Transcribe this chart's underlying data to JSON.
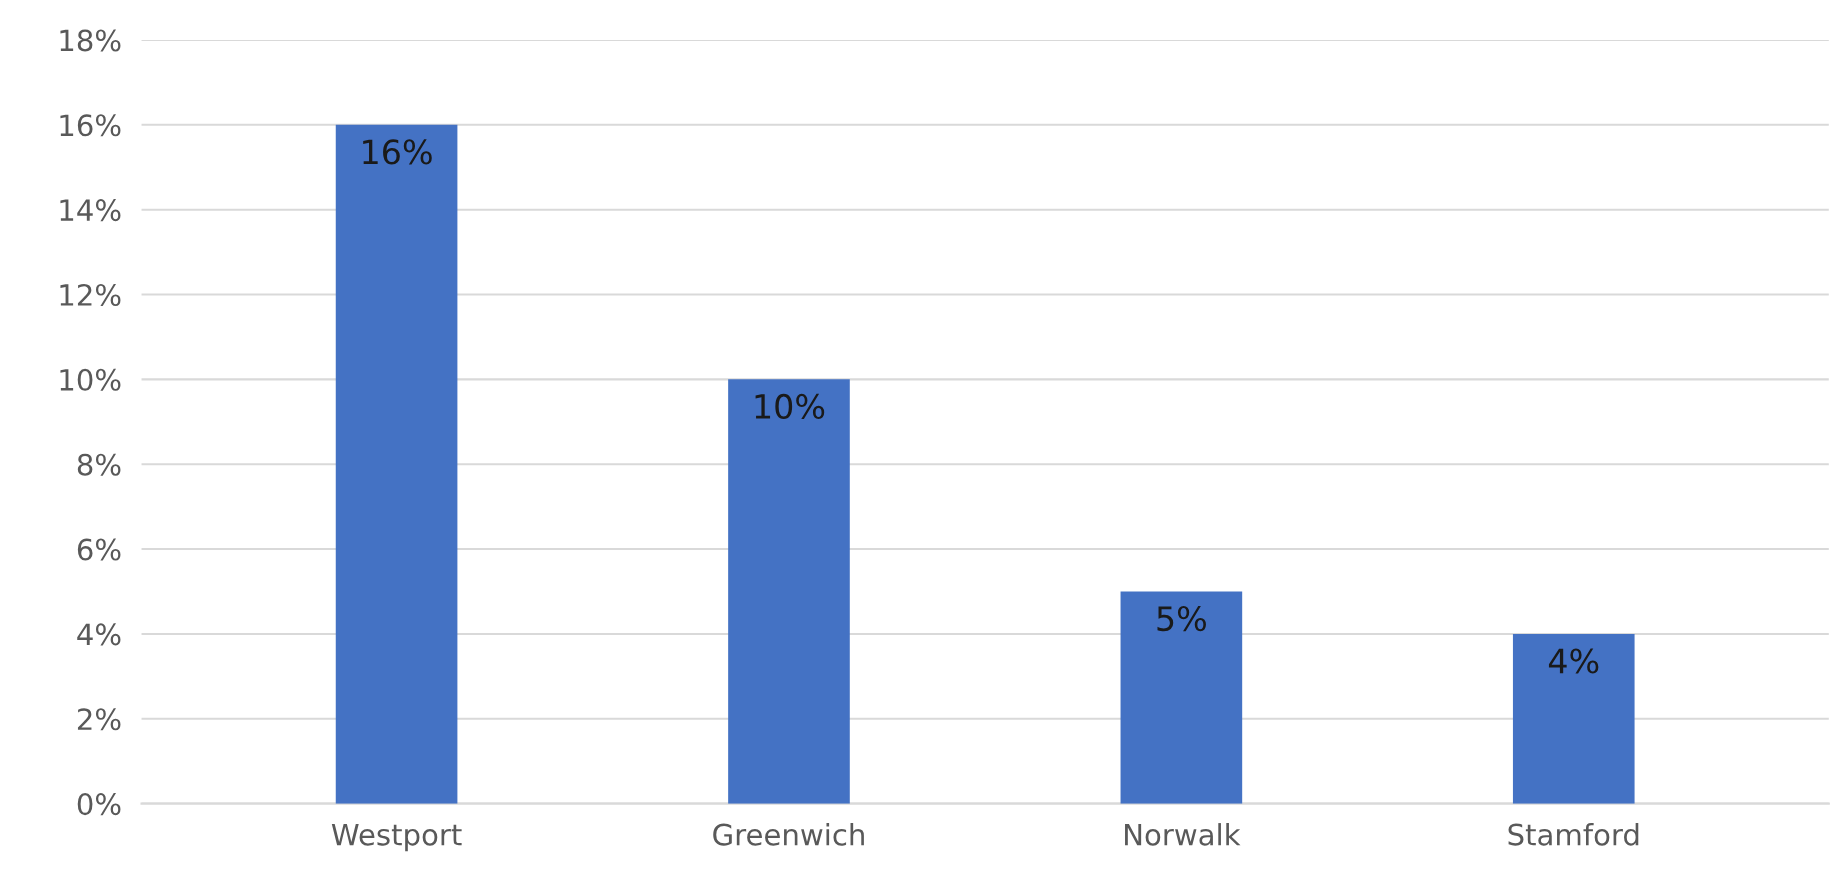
{
  "chart_data": {
    "type": "bar",
    "categories": [
      "Westport",
      "Greenwich",
      "Norwalk",
      "Stamford"
    ],
    "values": [
      16,
      10,
      5,
      4
    ],
    "value_labels": [
      "16%",
      "10%",
      "5%",
      "4%"
    ],
    "color": "#4472c4",
    "ylim": [
      0,
      18
    ],
    "yticks": [
      {
        "value": 0,
        "label": "0%"
      },
      {
        "value": 2,
        "label": "2%"
      },
      {
        "value": 4,
        "label": "4%"
      },
      {
        "value": 6,
        "label": "6%"
      },
      {
        "value": 8,
        "label": "8%"
      },
      {
        "value": 10,
        "label": "10%"
      },
      {
        "value": 12,
        "label": "12%"
      },
      {
        "value": 14,
        "label": "14%"
      },
      {
        "value": 16,
        "label": "16%"
      },
      {
        "value": 18,
        "label": "18%"
      }
    ],
    "grid": "y"
  }
}
